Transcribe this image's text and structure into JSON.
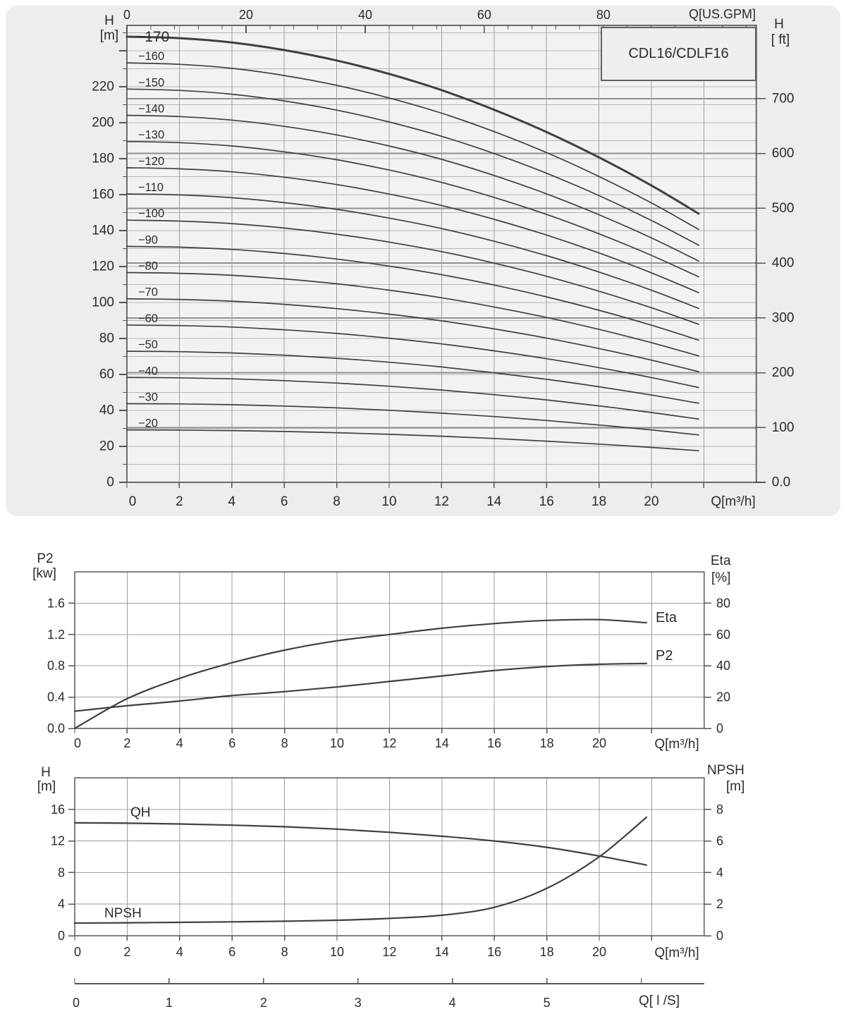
{
  "panel": {
    "model_label": "CDL16/CDLF16"
  },
  "colors": {
    "panel_bg": "#ededed",
    "plot_bg_top": "#f2f2f2",
    "grid_light": "#b5b5b5",
    "grid_mid": "#9e9e9e",
    "grid_heavy": "#8f8f8f",
    "frame": "#6a6a6a",
    "curve": "#3f3f3f",
    "tick": "#555555"
  },
  "chart_data": [
    {
      "id": "main_curves",
      "type": "line",
      "title": "CDL16/CDLF16",
      "xlabel": "Q[m³/h]",
      "xlabel_top": "Q[US.GPM]",
      "ylabel_left": "H [m]",
      "ylabel_right": "H [ ft]",
      "x_range_m3h": [
        0,
        24
      ],
      "y_range_m": [
        0,
        254
      ],
      "grid": "on",
      "x_ticks_bottom": [
        0,
        2,
        4,
        6,
        8,
        10,
        12,
        14,
        16,
        18,
        20
      ],
      "x_grid_max": 22,
      "y_ticks_left_m": [
        0,
        20,
        40,
        60,
        80,
        100,
        120,
        140,
        160,
        180,
        200,
        220
      ],
      "y_grid_step_m": 10,
      "y_ticks_right_ft": [
        "0.0",
        "100",
        "200",
        "300",
        "400",
        "500",
        "600",
        "700"
      ],
      "x_ticks_top_gpm": [
        0,
        20,
        40,
        60,
        80
      ],
      "gpm_minor_step": 4,
      "gpm_minor_max": 104,
      "q_samples": [
        0,
        2,
        4,
        6,
        8,
        10,
        12,
        14,
        16,
        18,
        20,
        21.8
      ],
      "per_stage_head_m": [
        14.58,
        14.53,
        14.39,
        14.14,
        13.8,
        13.36,
        12.83,
        12.19,
        11.46,
        10.63,
        9.71,
        8.79
      ],
      "curves": [
        {
          "label": "−170",
          "stages": 17
        },
        {
          "label": "−160",
          "stages": 16
        },
        {
          "label": "−150",
          "stages": 15
        },
        {
          "label": "−140",
          "stages": 14
        },
        {
          "label": "−130",
          "stages": 13
        },
        {
          "label": "−120",
          "stages": 12
        },
        {
          "label": "−110",
          "stages": 11
        },
        {
          "label": "−100",
          "stages": 10
        },
        {
          "label": "−90",
          "stages": 9
        },
        {
          "label": "−80",
          "stages": 8
        },
        {
          "label": "−70",
          "stages": 7
        },
        {
          "label": "−60",
          "stages": 6
        },
        {
          "label": "−50",
          "stages": 5
        },
        {
          "label": "−40",
          "stages": 4
        },
        {
          "label": "−30",
          "stages": 3
        },
        {
          "label": "−20",
          "stages": 2
        }
      ]
    },
    {
      "id": "power_efficiency",
      "type": "line",
      "xlabel": "Q[m³/h]",
      "ylabel_left": "P2 [kw]",
      "ylabel_right": "Eta [%]",
      "x_range_m3h": [
        0,
        24
      ],
      "y_range_kw": [
        0,
        2.0
      ],
      "y_range_pct": [
        0,
        100
      ],
      "x_ticks": [
        0,
        2,
        4,
        6,
        8,
        10,
        12,
        14,
        16,
        18,
        20
      ],
      "x_grid_max": 22,
      "y_ticks_left_kw": [
        "0.0",
        "0.4",
        "0.8",
        "1.2",
        "1.6"
      ],
      "y_ticks_right_pct": [
        0,
        20,
        40,
        60,
        80
      ],
      "q_samples": [
        0,
        2,
        4,
        6,
        8,
        10,
        12,
        14,
        16,
        18,
        20,
        21.8
      ],
      "series": [
        {
          "name": "Eta",
          "unit": "%",
          "values": [
            0,
            19,
            32,
            42,
            50,
            56,
            60,
            64,
            67,
            69,
            69.5,
            67.5
          ]
        },
        {
          "name": "P2",
          "unit": "kW",
          "values": [
            0.22,
            0.29,
            0.35,
            0.42,
            0.47,
            0.53,
            0.6,
            0.67,
            0.74,
            0.79,
            0.82,
            0.83
          ]
        }
      ],
      "legend": {
        "eta": "Eta",
        "p2": "P2"
      }
    },
    {
      "id": "qh_npsh",
      "type": "line",
      "xlabel": "Q[m³/h]",
      "ylabel_left": "H [m]",
      "ylabel_right": "NPSH [m]",
      "x_range_m3h": [
        0,
        24
      ],
      "y_range_h_m": [
        0,
        20
      ],
      "y_range_npsh_m": [
        0,
        10
      ],
      "x_ticks": [
        0,
        2,
        4,
        6,
        8,
        10,
        12,
        14,
        16,
        18,
        20
      ],
      "x_grid_max": 22,
      "y_ticks_left_m": [
        0,
        4,
        8,
        12,
        16
      ],
      "y_ticks_right_m": [
        0,
        2,
        4,
        6,
        8
      ],
      "q_samples": [
        0,
        2,
        4,
        6,
        8,
        10,
        12,
        14,
        16,
        18,
        20,
        21.8
      ],
      "series": [
        {
          "name": "QH",
          "unit": "m",
          "values": [
            14.3,
            14.25,
            14.15,
            14.0,
            13.8,
            13.5,
            13.1,
            12.6,
            12.0,
            11.2,
            10.1,
            8.95
          ]
        },
        {
          "name": "NPSH",
          "unit": "m",
          "values": [
            0.8,
            0.82,
            0.85,
            0.88,
            0.92,
            0.98,
            1.1,
            1.3,
            1.8,
            3.0,
            5.0,
            7.5
          ]
        }
      ],
      "labels": {
        "qh": "QH",
        "npsh": "NPSH"
      },
      "lps_axis": {
        "label": "Q[ l /S]",
        "ticks": [
          0,
          1,
          2,
          3,
          4,
          5
        ],
        "m3h_per_lps": 3.6
      }
    }
  ],
  "titles": {
    "top_left_1": "H",
    "top_left_2": "[m]",
    "top_gpm": "Q[US.GPM]",
    "top_right_1": "H",
    "top_right_2": "[ ft]",
    "top_xlabel": "Q[m³/h]",
    "mid_left_1": "P2",
    "mid_left_2": "[kw]",
    "mid_right_1": "Eta",
    "mid_right_2": "[%]",
    "mid_xlabel": "Q[m³/h]",
    "bot_left_1": "H",
    "bot_left_2": "[m]",
    "bot_right_1": "NPSH",
    "bot_right_2": "[m]",
    "bot_xlabel": "Q[m³/h]",
    "lps_label": "Q[ l /S]",
    "legend_eta": "Eta",
    "legend_p2": "P2",
    "label_qh": "QH",
    "label_npsh": "NPSH"
  }
}
